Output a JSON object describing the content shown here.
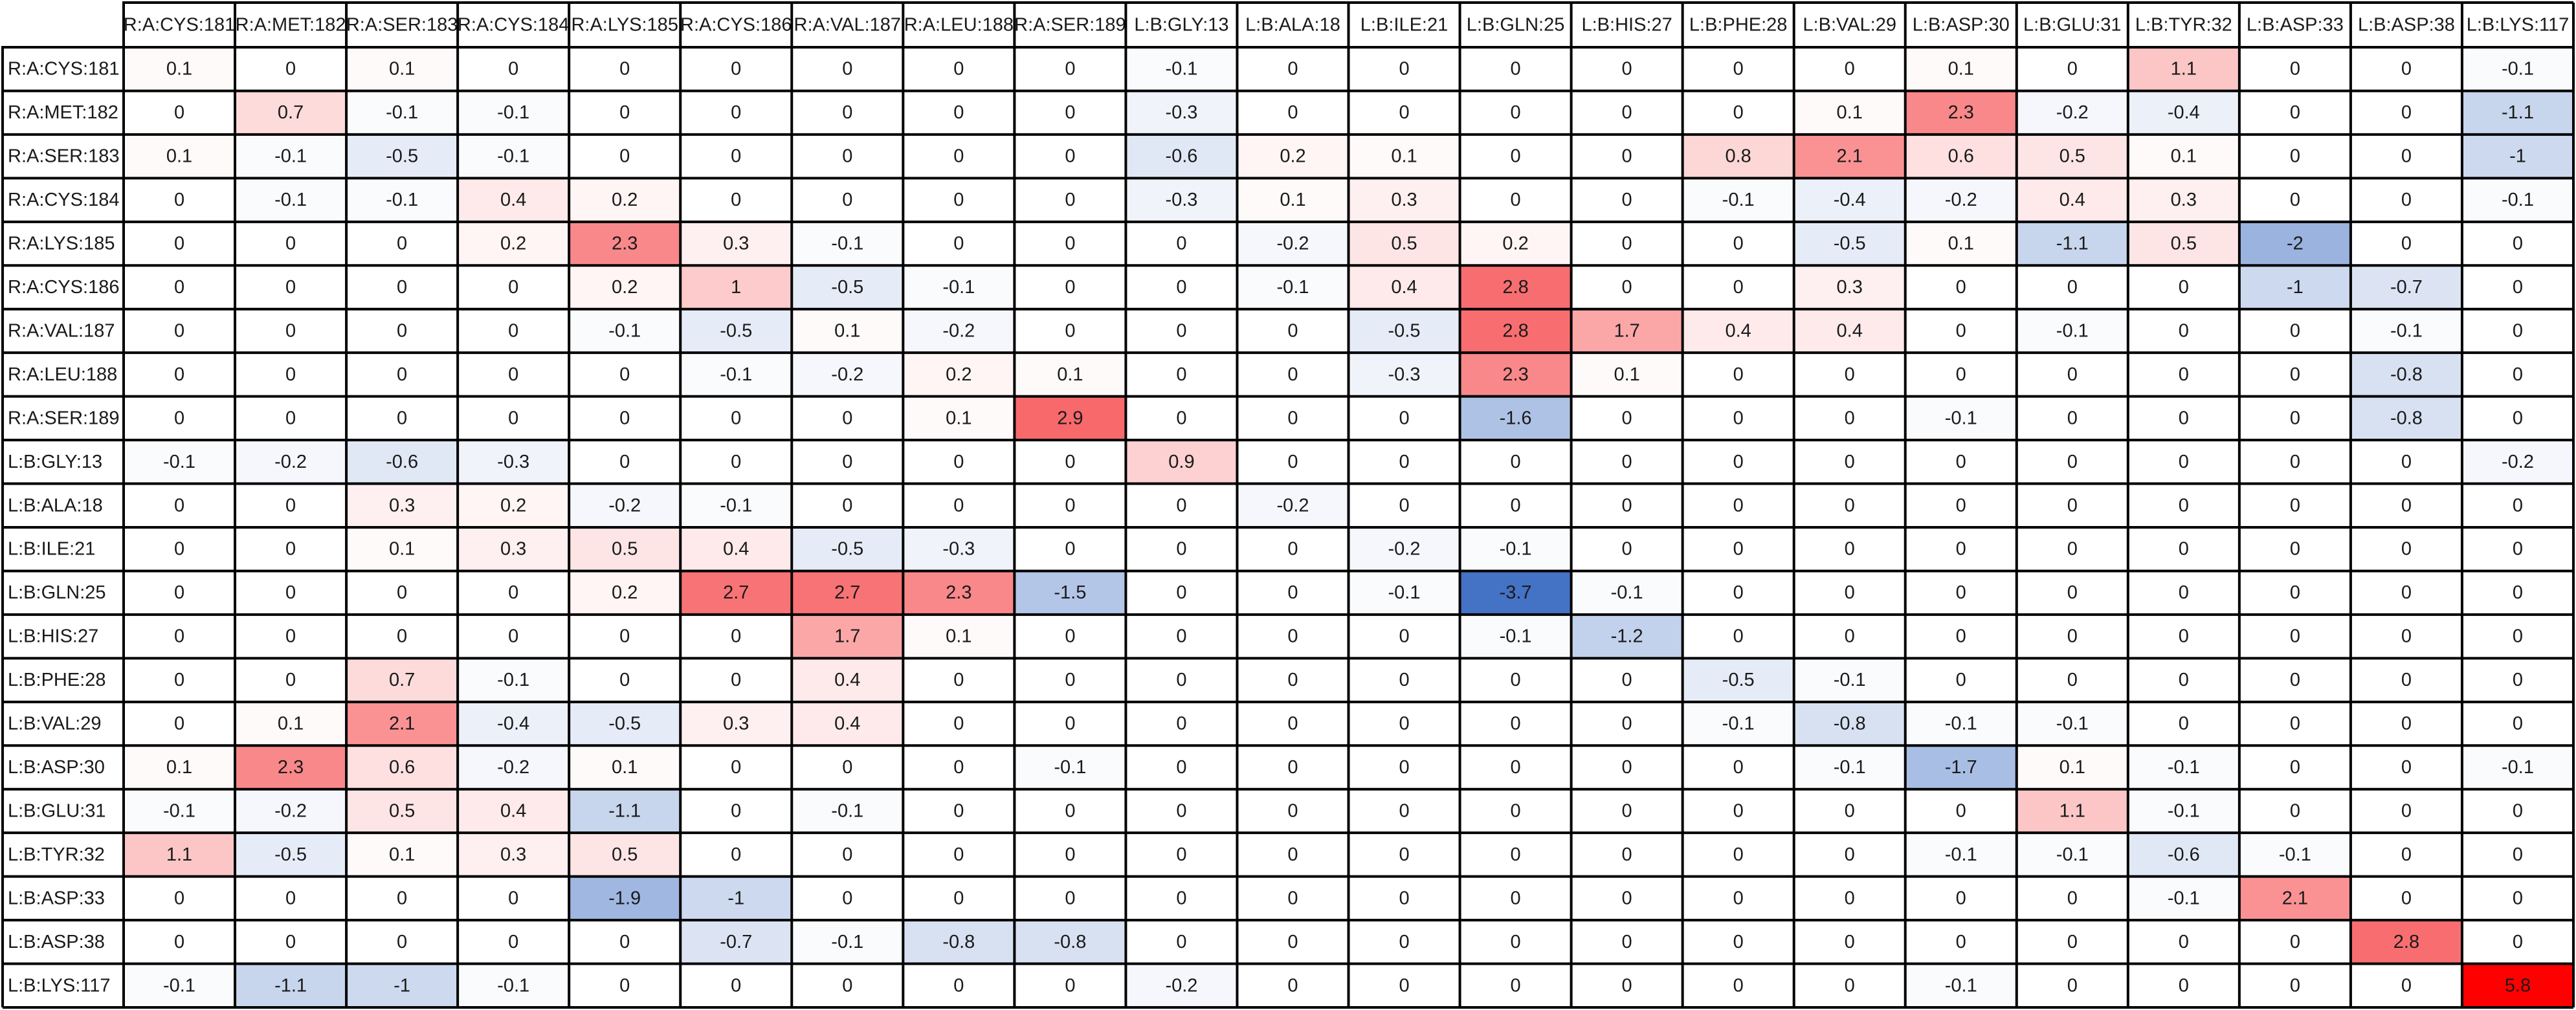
{
  "chart_data": {
    "type": "heatmap",
    "title": "",
    "xlabel": "",
    "ylabel": "",
    "columns": [
      "R:A:CYS:181",
      "R:A:MET:182",
      "R:A:SER:183",
      "R:A:CYS:184",
      "R:A:LYS:185",
      "R:A:CYS:186",
      "R:A:VAL:187",
      "R:A:LEU:188",
      "R:A:SER:189",
      "L:B:GLY:13",
      "L:B:ALA:18",
      "L:B:ILE:21",
      "L:B:GLN:25",
      "L:B:HIS:27",
      "L:B:PHE:28",
      "L:B:VAL:29",
      "L:B:ASP:30",
      "L:B:GLU:31",
      "L:B:TYR:32",
      "L:B:ASP:33",
      "L:B:ASP:38",
      "L:B:LYS:117"
    ],
    "rows": [
      "R:A:CYS:181",
      "R:A:MET:182",
      "R:A:SER:183",
      "R:A:CYS:184",
      "R:A:LYS:185",
      "R:A:CYS:186",
      "R:A:VAL:187",
      "R:A:LEU:188",
      "R:A:SER:189",
      "L:B:GLY:13",
      "L:B:ALA:18",
      "L:B:ILE:21",
      "L:B:GLN:25",
      "L:B:HIS:27",
      "L:B:PHE:28",
      "L:B:VAL:29",
      "L:B:ASP:30",
      "L:B:GLU:31",
      "L:B:TYR:32",
      "L:B:ASP:33",
      "L:B:ASP:38",
      "L:B:LYS:117"
    ],
    "values": [
      [
        "0.1",
        "0",
        "0.1",
        "0",
        "0",
        "0",
        "0",
        "0",
        "0",
        "-0.1",
        "0",
        "0",
        "0",
        "0",
        "0",
        "0",
        "0.1",
        "0",
        "1.1",
        "0",
        "0",
        "-0.1"
      ],
      [
        "0",
        "0.7",
        "-0.1",
        "-0.1",
        "0",
        "0",
        "0",
        "0",
        "0",
        "-0.3",
        "0",
        "0",
        "0",
        "0",
        "0",
        "0.1",
        "2.3",
        "-0.2",
        "-0.4",
        "0",
        "0",
        "-1.1"
      ],
      [
        "0.1",
        "-0.1",
        "-0.5",
        "-0.1",
        "0",
        "0",
        "0",
        "0",
        "0",
        "-0.6",
        "0.2",
        "0.1",
        "0",
        "0",
        "0.8",
        "2.1",
        "0.6",
        "0.5",
        "0.1",
        "0",
        "0",
        "-1"
      ],
      [
        "0",
        "-0.1",
        "-0.1",
        "0.4",
        "0.2",
        "0",
        "0",
        "0",
        "0",
        "-0.3",
        "0.1",
        "0.3",
        "0",
        "0",
        "-0.1",
        "-0.4",
        "-0.2",
        "0.4",
        "0.3",
        "0",
        "0",
        "-0.1"
      ],
      [
        "0",
        "0",
        "0",
        "0.2",
        "2.3",
        "0.3",
        "-0.1",
        "0",
        "0",
        "0",
        "-0.2",
        "0.5",
        "0.2",
        "0",
        "0",
        "-0.5",
        "0.1",
        "-1.1",
        "0.5",
        "-2",
        "0",
        "0"
      ],
      [
        "0",
        "0",
        "0",
        "0",
        "0.2",
        "1",
        "-0.5",
        "-0.1",
        "0",
        "0",
        "-0.1",
        "0.4",
        "2.8",
        "0",
        "0",
        "0.3",
        "0",
        "0",
        "0",
        "-1",
        "-0.7",
        "0"
      ],
      [
        "0",
        "0",
        "0",
        "0",
        "-0.1",
        "-0.5",
        "0.1",
        "-0.2",
        "0",
        "0",
        "0",
        "-0.5",
        "2.8",
        "1.7",
        "0.4",
        "0.4",
        "0",
        "-0.1",
        "0",
        "0",
        "-0.1",
        "0"
      ],
      [
        "0",
        "0",
        "0",
        "0",
        "0",
        "-0.1",
        "-0.2",
        "0.2",
        "0.1",
        "0",
        "0",
        "-0.3",
        "2.3",
        "0.1",
        "0",
        "0",
        "0",
        "0",
        "0",
        "0",
        "-0.8",
        "0"
      ],
      [
        "0",
        "0",
        "0",
        "0",
        "0",
        "0",
        "0",
        "0.1",
        "2.9",
        "0",
        "0",
        "0",
        "-1.6",
        "0",
        "0",
        "0",
        "-0.1",
        "0",
        "0",
        "0",
        "-0.8",
        "0"
      ],
      [
        "-0.1",
        "-0.2",
        "-0.6",
        "-0.3",
        "0",
        "0",
        "0",
        "0",
        "0",
        "0.9",
        "0",
        "0",
        "0",
        "0",
        "0",
        "0",
        "0",
        "0",
        "0",
        "0",
        "0",
        "-0.2"
      ],
      [
        "0",
        "0",
        "0.3",
        "0.2",
        "-0.2",
        "-0.1",
        "0",
        "0",
        "0",
        "0",
        "-0.2",
        "0",
        "0",
        "0",
        "0",
        "0",
        "0",
        "0",
        "0",
        "0",
        "0",
        "0"
      ],
      [
        "0",
        "0",
        "0.1",
        "0.3",
        "0.5",
        "0.4",
        "-0.5",
        "-0.3",
        "0",
        "0",
        "0",
        "-0.2",
        "-0.1",
        "0",
        "0",
        "0",
        "0",
        "0",
        "0",
        "0",
        "0",
        "0"
      ],
      [
        "0",
        "0",
        "0",
        "0",
        "0.2",
        "2.7",
        "2.7",
        "2.3",
        "-1.5",
        "0",
        "0",
        "-0.1",
        "-3.7",
        "-0.1",
        "0",
        "0",
        "0",
        "0",
        "0",
        "0",
        "0",
        "0"
      ],
      [
        "0",
        "0",
        "0",
        "0",
        "0",
        "0",
        "1.7",
        "0.1",
        "0",
        "0",
        "0",
        "0",
        "-0.1",
        "-1.2",
        "0",
        "0",
        "0",
        "0",
        "0",
        "0",
        "0",
        "0"
      ],
      [
        "0",
        "0",
        "0.7",
        "-0.1",
        "0",
        "0",
        "0.4",
        "0",
        "0",
        "0",
        "0",
        "0",
        "0",
        "0",
        "-0.5",
        "-0.1",
        "0",
        "0",
        "0",
        "0",
        "0",
        "0"
      ],
      [
        "0",
        "0.1",
        "2.1",
        "-0.4",
        "-0.5",
        "0.3",
        "0.4",
        "0",
        "0",
        "0",
        "0",
        "0",
        "0",
        "0",
        "-0.1",
        "-0.8",
        "-0.1",
        "-0.1",
        "0",
        "0",
        "0",
        "0"
      ],
      [
        "0.1",
        "2.3",
        "0.6",
        "-0.2",
        "0.1",
        "0",
        "0",
        "0",
        "-0.1",
        "0",
        "0",
        "0",
        "0",
        "0",
        "0",
        "-0.1",
        "-1.7",
        "0.1",
        "-0.1",
        "0",
        "0",
        "-0.1"
      ],
      [
        "-0.1",
        "-0.2",
        "0.5",
        "0.4",
        "-1.1",
        "0",
        "-0.1",
        "0",
        "0",
        "0",
        "0",
        "0",
        "0",
        "0",
        "0",
        "0",
        "0",
        "1.1",
        "-0.1",
        "0",
        "0",
        "0"
      ],
      [
        "1.1",
        "-0.5",
        "0.1",
        "0.3",
        "0.5",
        "0",
        "0",
        "0",
        "0",
        "0",
        "0",
        "0",
        "0",
        "0",
        "0",
        "0",
        "-0.1",
        "-0.1",
        "-0.6",
        "-0.1",
        "0",
        "0"
      ],
      [
        "0",
        "0",
        "0",
        "0",
        "-1.9",
        "-1",
        "0",
        "0",
        "0",
        "0",
        "0",
        "0",
        "0",
        "0",
        "0",
        "0",
        "0",
        "0",
        "-0.1",
        "2.1",
        "0",
        "0"
      ],
      [
        "0",
        "0",
        "0",
        "0",
        "0",
        "-0.7",
        "-0.1",
        "-0.8",
        "-0.8",
        "0",
        "0",
        "0",
        "0",
        "0",
        "0",
        "0",
        "0",
        "0",
        "0",
        "0",
        "2.8",
        "0"
      ],
      [
        "-0.1",
        "-1.1",
        "-1",
        "-0.1",
        "0",
        "0",
        "0",
        "0",
        "0",
        "-0.2",
        "0",
        "0",
        "0",
        "0",
        "0",
        "0",
        "-0.1",
        "0",
        "0",
        "0",
        "0",
        "5.8"
      ]
    ],
    "color_scale": {
      "negative_max": "#4472c4",
      "zero": "#ffffff",
      "positive_max": "#ff0000",
      "positive_mid": "#f8696b",
      "grid_line": "#000000"
    },
    "grid": true,
    "legend": "none"
  }
}
